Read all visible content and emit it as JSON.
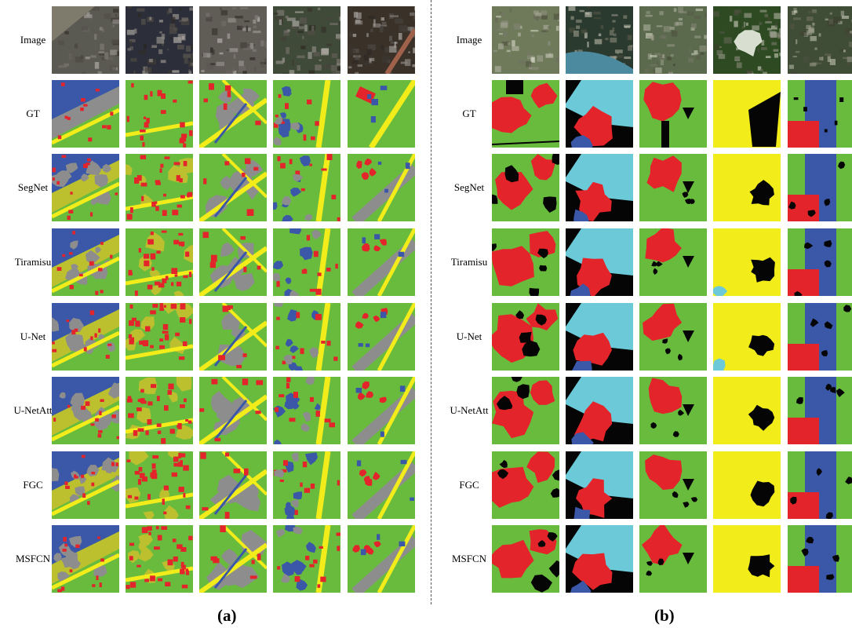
{
  "figure": {
    "row_labels": [
      "Image",
      "GT",
      "SegNet",
      "Tiramisu",
      "U-Net",
      "U-NetAtt",
      "FGC",
      "MSFCN"
    ],
    "panel_labels": [
      "(a)",
      "(b)"
    ],
    "colors": {
      "building": "#e3242b",
      "vegetation": "#69bb3e",
      "water": "#3a57a8",
      "road": "#f2ec1b",
      "bare": "#8d8d8d",
      "farmland": "#bcc02e",
      "cyan_water": "#6cc9d8",
      "background": "#050505"
    }
  }
}
